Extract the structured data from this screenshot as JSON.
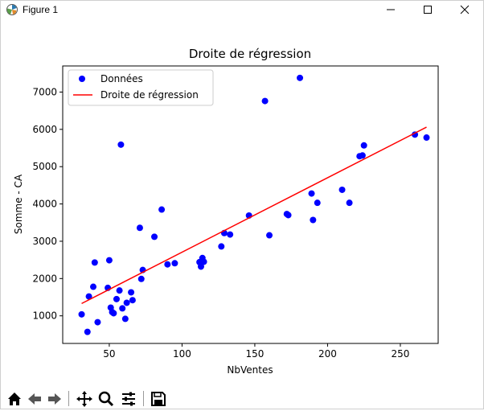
{
  "window": {
    "title": "Figure 1",
    "icon": "matplotlib-figure-icon",
    "controls": [
      "minimize-icon",
      "maximize-icon",
      "close-icon"
    ]
  },
  "toolbar": {
    "buttons": [
      "home-icon",
      "back-arrow-icon",
      "forward-arrow-icon",
      "pan-move-icon",
      "zoom-magnifier-icon",
      "configure-subplots-icon",
      "save-disk-icon"
    ]
  },
  "colors": {
    "points": "#0000ff",
    "line": "#ff0000"
  },
  "chart_data": {
    "type": "scatter",
    "title": "Droite de régression",
    "xlabel": "NbVentes",
    "ylabel": "Somme - CA",
    "xlim": [
      18,
      276
    ],
    "ylim": [
      260,
      7700
    ],
    "xticks": [
      50,
      100,
      150,
      200,
      250
    ],
    "yticks": [
      1000,
      2000,
      3000,
      4000,
      5000,
      6000,
      7000
    ],
    "legend": {
      "position": "top-left",
      "entries": [
        "Données",
        "Droite de régression"
      ]
    },
    "grid": false,
    "series": [
      {
        "name": "Données",
        "kind": "scatter",
        "color": "#0000ff",
        "points": [
          [
            31,
            1040
          ],
          [
            35,
            570
          ],
          [
            36,
            1520
          ],
          [
            39,
            1780
          ],
          [
            40,
            2430
          ],
          [
            42,
            830
          ],
          [
            49,
            1750
          ],
          [
            50,
            2490
          ],
          [
            51,
            1220
          ],
          [
            52,
            1100
          ],
          [
            53,
            1070
          ],
          [
            55,
            1450
          ],
          [
            57,
            1680
          ],
          [
            58,
            5590
          ],
          [
            59,
            1200
          ],
          [
            61,
            920
          ],
          [
            62,
            1350
          ],
          [
            65,
            1630
          ],
          [
            66,
            1420
          ],
          [
            71,
            3360
          ],
          [
            72,
            1990
          ],
          [
            73,
            2230
          ],
          [
            81,
            3120
          ],
          [
            86,
            3850
          ],
          [
            90,
            2380
          ],
          [
            95,
            2410
          ],
          [
            112,
            2440
          ],
          [
            113,
            2320
          ],
          [
            114,
            2550
          ],
          [
            115,
            2450
          ],
          [
            127,
            2860
          ],
          [
            129,
            3220
          ],
          [
            133,
            3180
          ],
          [
            146,
            3690
          ],
          [
            157,
            6760
          ],
          [
            160,
            3160
          ],
          [
            172,
            3730
          ],
          [
            173,
            3700
          ],
          [
            181,
            7380
          ],
          [
            189,
            4280
          ],
          [
            190,
            3570
          ],
          [
            193,
            4030
          ],
          [
            210,
            4380
          ],
          [
            215,
            4030
          ],
          [
            222,
            5280
          ],
          [
            224,
            5300
          ],
          [
            225,
            5570
          ],
          [
            260,
            5860
          ],
          [
            268,
            5780
          ]
        ]
      },
      {
        "name": "Droite de régression",
        "kind": "line",
        "color": "#ff0000",
        "points": [
          [
            31,
            1330
          ],
          [
            268,
            6060
          ]
        ]
      }
    ]
  }
}
